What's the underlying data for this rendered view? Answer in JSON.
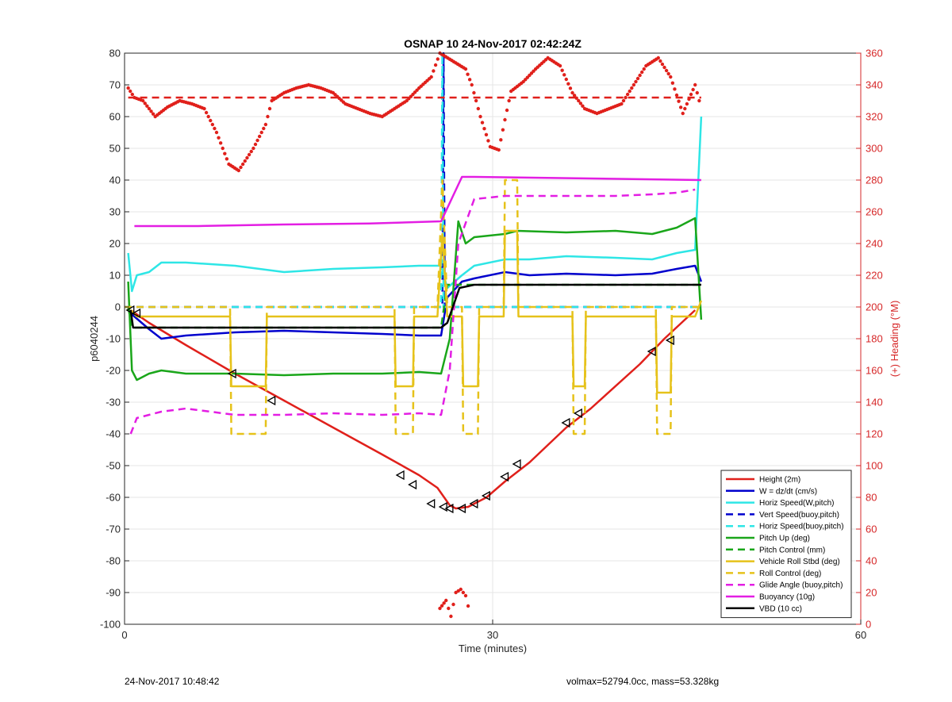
{
  "chart_data": {
    "type": "line",
    "title": "OSNAP 10 24-Nov-2017 02:42:24Z",
    "xlabel": "Time (minutes)",
    "ylabel": "p6040244",
    "y2label": "(+) Heading (°M)",
    "xlim": [
      0,
      60
    ],
    "ylim": [
      -100,
      80
    ],
    "y2lim": [
      0,
      360
    ],
    "xticks": [
      "0",
      "30",
      "60"
    ],
    "yticks": [
      "80",
      "70",
      "60",
      "50",
      "40",
      "30",
      "20",
      "10",
      "0",
      "-10",
      "-20",
      "-30",
      "-40",
      "-50",
      "-60",
      "-70",
      "-80",
      "-90",
      "-100"
    ],
    "y2ticks": [
      "360",
      "340",
      "320",
      "300",
      "280",
      "260",
      "240",
      "220",
      "200",
      "180",
      "160",
      "140",
      "120",
      "100",
      "80",
      "60",
      "40",
      "20",
      "0"
    ],
    "grid": true,
    "legend_position": "bottom-right",
    "colors": {
      "red": "#e0201b",
      "blue": "#0000cd",
      "cyan": "#2ee6e6",
      "green": "#1aa61a",
      "yellow": "#e6c21a",
      "magenta": "#e31ee3",
      "black": "#000000",
      "axis_right": "#d62728"
    },
    "series": [
      {
        "name": "Height (2m)",
        "color": "#e0201b",
        "dash": false,
        "axis": "left",
        "x": [
          0.5,
          2,
          5,
          9,
          13,
          17,
          21,
          24,
          25.5,
          26.5,
          27,
          28,
          29.5,
          31,
          33,
          36,
          38,
          42,
          44,
          46.5
        ],
        "y": [
          -1,
          -5,
          -12,
          -21,
          -29.5,
          -38,
          -46.5,
          -53,
          -57,
          -62.5,
          -63.5,
          -63,
          -60,
          -55,
          -49,
          -38,
          -32,
          -18,
          -10,
          -1
        ]
      },
      {
        "name": "W = dz/dt (cm/s)",
        "color": "#0000cd",
        "dash": false,
        "axis": "left",
        "x": [
          0.5,
          2,
          3,
          5,
          9,
          13,
          17,
          21,
          24,
          25.8,
          26.3,
          27.5,
          28.5,
          31,
          33,
          36,
          40,
          43,
          45,
          46.5,
          47
        ],
        "y": [
          -2,
          -7,
          -10,
          -9,
          -8,
          -7.5,
          -8,
          -8.5,
          -9,
          -9,
          3,
          8,
          9,
          11,
          10,
          10.5,
          10,
          10.5,
          12,
          13,
          8
        ]
      },
      {
        "name": "Horiz Speed(W,pitch)",
        "color": "#2ee6e6",
        "dash": false,
        "axis": "left",
        "x": [
          0.3,
          0.6,
          1,
          2,
          3,
          5,
          9,
          13,
          17,
          21,
          24,
          25.8,
          26.3,
          27.5,
          28.5,
          31,
          33,
          36,
          40,
          43,
          45,
          46.5,
          47
        ],
        "y": [
          17,
          5,
          10,
          11,
          14,
          14,
          13,
          11,
          12,
          12.5,
          13,
          13,
          6,
          10,
          13,
          15,
          15,
          16,
          15.5,
          15,
          17,
          18,
          60
        ]
      },
      {
        "name": "Vert Speed(buoy,pitch)",
        "color": "#0000cd",
        "dash": true,
        "axis": "left",
        "x": [
          0,
          25.9,
          26,
          26.1,
          47
        ],
        "y": [
          0,
          0,
          80,
          0,
          0
        ]
      },
      {
        "name": "Horiz Speed(buoy,pitch)",
        "color": "#2ee6e6",
        "dash": true,
        "axis": "left",
        "x": [
          0,
          25.8,
          25.9,
          26,
          47
        ],
        "y": [
          0,
          0,
          80,
          0,
          0
        ]
      },
      {
        "name": "Pitch Up (deg)",
        "color": "#1aa61a",
        "dash": false,
        "axis": "left",
        "x": [
          0.3,
          0.6,
          1,
          2,
          3,
          5,
          9,
          13,
          17,
          21,
          24,
          25.8,
          26.5,
          27.2,
          27.8,
          28.5,
          31,
          32,
          36,
          40,
          43,
          45,
          46.5,
          47
        ],
        "y": [
          8,
          -20,
          -23,
          -21,
          -20,
          -21,
          -21,
          -21.5,
          -21,
          -21,
          -20.5,
          -21,
          -10,
          27,
          20,
          22,
          23,
          24,
          23.5,
          24,
          23,
          25,
          28,
          -4
        ]
      },
      {
        "name": "Pitch Control (mm)",
        "color": "#1aa61a",
        "dash": true,
        "axis": "left",
        "x": [
          0.3,
          0.6,
          25.8,
          26.3,
          28.5,
          47
        ],
        "y": [
          0,
          -6.5,
          -6.5,
          7,
          7,
          7
        ]
      },
      {
        "name": "Vehicle Roll Stbd (deg)",
        "color": "#e6c21a",
        "dash": false,
        "axis": "left",
        "x": [
          0.5,
          1,
          8.6,
          8.7,
          11.5,
          11.6,
          22,
          22.1,
          23.5,
          23.6,
          25.5,
          25.9,
          26.3,
          27.5,
          27.6,
          28.8,
          28.9,
          30.9,
          31,
          32,
          32.1,
          36.5,
          36.6,
          37.5,
          37.6,
          43.3,
          43.4,
          44.5,
          44.6,
          46.5,
          47
        ],
        "y": [
          -1,
          -3,
          -3,
          -25,
          -25,
          -3,
          -3,
          -25,
          -25,
          -3,
          -3,
          23,
          -3,
          -3,
          -25,
          -25,
          -3,
          -3,
          24,
          24,
          -3,
          -3,
          -25,
          -25,
          -3,
          -3,
          -27,
          -27,
          -3,
          -3,
          2
        ]
      },
      {
        "name": "Roll Control (deg)",
        "color": "#e6c21a",
        "dash": true,
        "axis": "left",
        "x": [
          0,
          8.6,
          8.7,
          11.5,
          11.6,
          22,
          22.1,
          23.5,
          23.6,
          25.5,
          25.9,
          26.3,
          27.5,
          27.6,
          28.8,
          28.9,
          30.9,
          31,
          32,
          32.1,
          36.5,
          36.6,
          37.5,
          37.6,
          43.3,
          43.4,
          44.5,
          44.6,
          47
        ],
        "y": [
          0,
          0,
          -40,
          -40,
          0,
          0,
          -40,
          -40,
          0,
          0,
          40,
          0,
          0,
          -40,
          -40,
          0,
          0,
          40,
          40,
          0,
          0,
          -40,
          -40,
          0,
          0,
          -40,
          -40,
          0,
          0
        ]
      },
      {
        "name": "Glide Angle (buoy,pitch)",
        "color": "#e31ee3",
        "dash": true,
        "axis": "left",
        "x": [
          0.5,
          1,
          2,
          3,
          5,
          9,
          13,
          17,
          21,
          24,
          25.8,
          26.5,
          27.2,
          28.5,
          31,
          36,
          40,
          43,
          45,
          46.5
        ],
        "y": [
          -40,
          -35,
          -34,
          -33,
          -32,
          -34,
          -34,
          -33.5,
          -34,
          -33.5,
          -34,
          -20,
          20,
          34,
          35,
          35,
          35,
          35.5,
          36,
          37
        ]
      },
      {
        "name": "Buoyancy (10g)",
        "color": "#e31ee3",
        "dash": false,
        "axis": "left",
        "x": [
          0.8,
          6,
          13,
          20,
          25.8,
          27.5,
          28.5,
          47
        ],
        "y": [
          25.5,
          25.5,
          26,
          26.3,
          27,
          41,
          41,
          40
        ]
      },
      {
        "name": "VBD (10 cc)",
        "color": "#000000",
        "dash": false,
        "axis": "left",
        "x": [
          0.5,
          0.7,
          25.8,
          26.3,
          27.3,
          28.5,
          47
        ],
        "y": [
          -1,
          -6.5,
          -6.5,
          -5,
          6,
          7,
          7
        ]
      },
      {
        "name": "",
        "color": "#e0201b",
        "dash": true,
        "axis": "right",
        "x": [
          0.3,
          47
        ],
        "y": [
          332,
          332
        ]
      },
      {
        "name": "",
        "color": "#e0201b",
        "dot": true,
        "axis": "right",
        "x": [
          0.3,
          0.8,
          1.5,
          2.5,
          3.5,
          4.5,
          5.5,
          6.5,
          7.5,
          8.5,
          9.3,
          10.5,
          11.5,
          12,
          13,
          14,
          15,
          16,
          17,
          18,
          19,
          20,
          21,
          22,
          23,
          24,
          25,
          25.7,
          27.8,
          28.3,
          29,
          29.8,
          30.5,
          31,
          31.5,
          32.5,
          33.5,
          34.5,
          35.5,
          36.5,
          37.5,
          38.5,
          39.5,
          40.5,
          41.5,
          42.5,
          43.5,
          44.5,
          45.5,
          46.5,
          47
        ],
        "y": [
          338,
          332,
          330,
          320,
          326,
          330,
          328,
          325,
          310,
          290,
          286,
          300,
          315,
          330,
          335,
          338,
          340,
          338,
          335,
          328,
          325,
          322,
          320,
          325,
          330,
          338,
          345,
          360,
          350,
          340,
          320,
          301,
          299,
          318,
          336,
          342,
          350,
          357,
          352,
          335,
          325,
          322,
          325,
          328,
          340,
          352,
          357,
          345,
          322,
          340,
          325
        ]
      },
      {
        "name": "",
        "color": "#e0201b",
        "dot": true,
        "axis": "right",
        "x": [
          25.7,
          26.2,
          26.6,
          27,
          27.4,
          27.8,
          28.2
        ],
        "y": [
          10,
          15,
          5,
          20,
          22,
          18,
          5
        ]
      }
    ],
    "markers": {
      "type": "triangle-left",
      "color": "#000000",
      "x": [
        0.5,
        1,
        8.8,
        12,
        22.5,
        23.5,
        25,
        26,
        26.5,
        27.5,
        28.5,
        29.5,
        31,
        32,
        36,
        37,
        43,
        44.5
      ],
      "y": [
        -1,
        -2,
        -21,
        -29.5,
        -53,
        -56,
        -62,
        -63,
        -63.5,
        -63.5,
        -62,
        -59.5,
        -53.5,
        -49.5,
        -36.5,
        -33.5,
        -14,
        -10.5
      ]
    }
  },
  "footer": {
    "timestamp": "24-Nov-2017 10:48:42",
    "params": "volmax=52794.0cc, mass=53.328kg"
  }
}
